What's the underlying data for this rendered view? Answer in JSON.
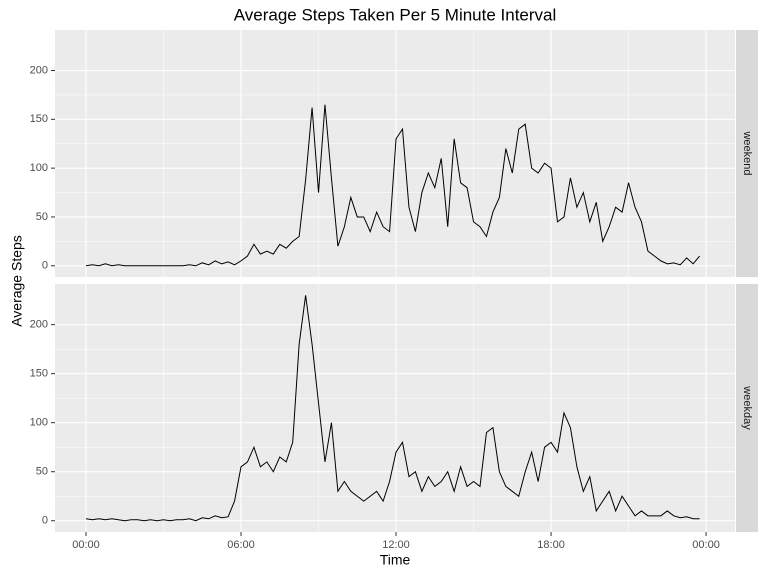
{
  "chart_data": {
    "type": "line",
    "title": "Average Steps Taken Per 5 Minute Interval",
    "x_label": "Time",
    "y_label": "Average Steps",
    "x": [
      0,
      0.25,
      0.5,
      0.75,
      1,
      1.25,
      1.5,
      1.75,
      2,
      2.25,
      2.5,
      2.75,
      3,
      3.25,
      3.5,
      3.75,
      4,
      4.25,
      4.5,
      4.75,
      5,
      5.25,
      5.5,
      5.75,
      6,
      6.25,
      6.5,
      6.75,
      7,
      7.25,
      7.5,
      7.75,
      8,
      8.25,
      8.5,
      8.75,
      9,
      9.25,
      9.5,
      9.75,
      10,
      10.25,
      10.5,
      10.75,
      11,
      11.25,
      11.5,
      11.75,
      12,
      12.25,
      12.5,
      12.75,
      13,
      13.25,
      13.5,
      13.75,
      14,
      14.25,
      14.5,
      14.75,
      15,
      15.25,
      15.5,
      15.75,
      16,
      16.25,
      16.5,
      16.75,
      17,
      17.25,
      17.5,
      17.75,
      18,
      18.25,
      18.5,
      18.75,
      19,
      19.25,
      19.5,
      19.75,
      20,
      20.25,
      20.5,
      20.75,
      21,
      21.25,
      21.5,
      21.75,
      22,
      22.25,
      22.5,
      22.75,
      23,
      23.25,
      23.5,
      23.75
    ],
    "xlim": [
      -1.2,
      25.12
    ],
    "xticks": [
      {
        "value": 0,
        "label": "00:00"
      },
      {
        "value": 6,
        "label": "06:00"
      },
      {
        "value": 12,
        "label": "12:00"
      },
      {
        "value": 18,
        "label": "18:00"
      },
      {
        "value": 24,
        "label": "00:00"
      }
    ],
    "ylim": [
      -11.5,
      241.5
    ],
    "yticks": [
      0,
      50,
      100,
      150,
      200
    ],
    "grid": true,
    "series": [
      {
        "name": "weekend",
        "color": "#000000",
        "values": [
          0,
          1,
          0,
          2,
          0,
          1,
          0,
          0,
          0,
          0,
          0,
          0,
          0,
          0,
          0,
          0,
          1,
          0,
          3,
          1,
          5,
          2,
          4,
          1,
          5,
          10,
          22,
          12,
          15,
          12,
          22,
          18,
          25,
          30,
          88,
          162,
          75,
          165,
          90,
          20,
          40,
          70,
          50,
          50,
          35,
          55,
          40,
          35,
          130,
          140,
          60,
          35,
          75,
          95,
          80,
          110,
          40,
          130,
          85,
          80,
          45,
          40,
          30,
          55,
          70,
          120,
          95,
          140,
          145,
          100,
          95,
          105,
          100,
          45,
          50,
          90,
          60,
          75,
          45,
          65,
          25,
          40,
          60,
          55,
          85,
          60,
          45,
          15,
          10,
          5,
          2,
          3,
          1,
          8,
          2,
          10
        ]
      },
      {
        "name": "weekday",
        "color": "#000000",
        "values": [
          2,
          1,
          2,
          1,
          2,
          1,
          0,
          1,
          1,
          0,
          1,
          0,
          1,
          0,
          1,
          1,
          2,
          0,
          3,
          2,
          5,
          3,
          4,
          20,
          55,
          60,
          75,
          55,
          60,
          50,
          65,
          60,
          80,
          180,
          230,
          180,
          120,
          60,
          100,
          30,
          40,
          30,
          25,
          20,
          25,
          30,
          20,
          40,
          70,
          80,
          45,
          50,
          30,
          45,
          35,
          40,
          50,
          30,
          55,
          35,
          40,
          35,
          90,
          95,
          50,
          35,
          30,
          25,
          50,
          70,
          40,
          75,
          80,
          70,
          110,
          95,
          55,
          30,
          45,
          10,
          20,
          30,
          10,
          25,
          15,
          5,
          10,
          5,
          5,
          5,
          10,
          5,
          3,
          4,
          2,
          2
        ]
      }
    ]
  }
}
